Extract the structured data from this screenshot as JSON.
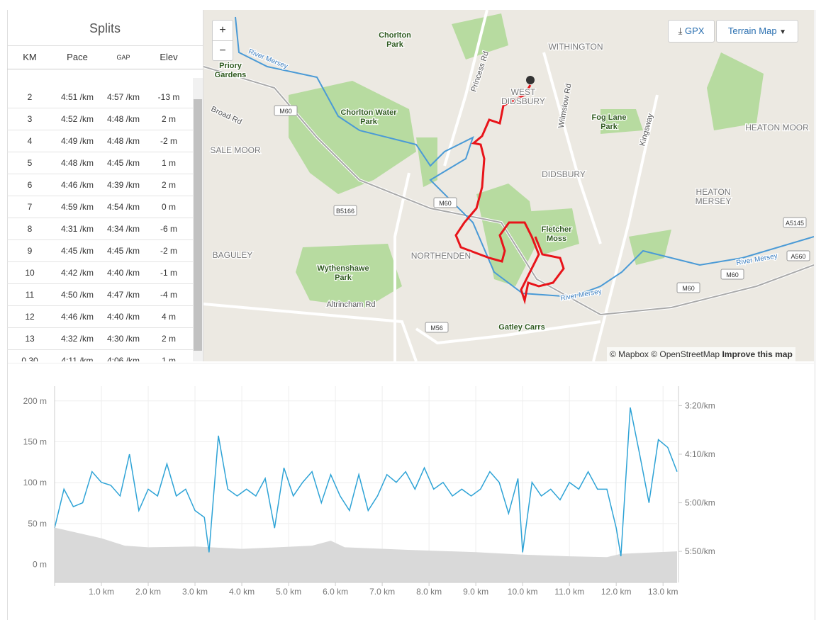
{
  "splits": {
    "title": "Splits",
    "columns": [
      "KM",
      "Pace",
      "GAP",
      "Elev"
    ],
    "rows": [
      [
        "2",
        "4:51 /km",
        "4:57 /km",
        "-13 m"
      ],
      [
        "3",
        "4:52 /km",
        "4:48 /km",
        "2 m"
      ],
      [
        "4",
        "4:49 /km",
        "4:48 /km",
        "-2 m"
      ],
      [
        "5",
        "4:48 /km",
        "4:45 /km",
        "1 m"
      ],
      [
        "6",
        "4:46 /km",
        "4:39 /km",
        "2 m"
      ],
      [
        "7",
        "4:59 /km",
        "4:54 /km",
        "0 m"
      ],
      [
        "8",
        "4:31 /km",
        "4:34 /km",
        "-6 m"
      ],
      [
        "9",
        "4:45 /km",
        "4:45 /km",
        "-2 m"
      ],
      [
        "10",
        "4:42 /km",
        "4:40 /km",
        "-1 m"
      ],
      [
        "11",
        "4:50 /km",
        "4:47 /km",
        "-4 m"
      ],
      [
        "12",
        "4:46 /km",
        "4:40 /km",
        "4 m"
      ],
      [
        "13",
        "4:32 /km",
        "4:30 /km",
        "2 m"
      ],
      [
        "0.30",
        "4:11 /km",
        "4:06 /km",
        "1 m"
      ]
    ]
  },
  "map": {
    "zoom_in": "+",
    "zoom_out": "−",
    "gpx": "GPX",
    "layer": "Terrain Map",
    "attribution": "© Mapbox © OpenStreetMap",
    "improve": "Improve this map",
    "labels": [
      "Chorlton Park",
      "WITHINGTON",
      "Priory Gardens",
      "River Mersey",
      "Princess Rd",
      "WEST DIDSBURY",
      "Wilmslow Rd",
      "Broad Rd",
      "Chorlton Water Park",
      "Fog Lane Park",
      "Kingsway",
      "HEATON MOOR",
      "SALE MOOR",
      "M60",
      "DIDSBURY",
      "HEATON MERSEY",
      "M60",
      "B5166",
      "Fletcher Moss",
      "A5145",
      "BAGULEY",
      "NORTHENDEN",
      "Wythenshawe Park",
      "River Mersey",
      "A560",
      "M60",
      "M60",
      "River Mersey",
      "Altrincham Rd",
      "M56",
      "Gatley Carrs"
    ]
  },
  "chart_data": {
    "type": "line",
    "xlim": [
      0,
      13.3
    ],
    "xticks": [
      {
        "value": 1,
        "label": "1.0 km"
      },
      {
        "value": 2,
        "label": "2.0 km"
      },
      {
        "value": 3,
        "label": "3.0 km"
      },
      {
        "value": 4,
        "label": "4.0 km"
      },
      {
        "value": 5,
        "label": "5.0 km"
      },
      {
        "value": 6,
        "label": "6.0 km"
      },
      {
        "value": 7,
        "label": "7.0 km"
      },
      {
        "value": 8,
        "label": "8.0 km"
      },
      {
        "value": 9,
        "label": "9.0 km"
      },
      {
        "value": 10,
        "label": "10.0 km"
      },
      {
        "value": 11,
        "label": "11.0 km"
      },
      {
        "value": 12,
        "label": "12.0 km"
      },
      {
        "value": 13,
        "label": "13.0 km"
      }
    ],
    "ylim": [
      -22,
      218
    ],
    "yticks": [
      {
        "value": 0,
        "label": "0 m"
      },
      {
        "value": 50,
        "label": "50 m"
      },
      {
        "value": 100,
        "label": "100 m"
      },
      {
        "value": 150,
        "label": "150 m"
      },
      {
        "value": 200,
        "label": "200 m"
      }
    ],
    "y2lim": [
      382,
      180
    ],
    "y2ticks": [
      {
        "value": 200,
        "label": "3:20/km"
      },
      {
        "value": 250,
        "label": "4:10/km"
      },
      {
        "value": 300,
        "label": "5:00/km"
      },
      {
        "value": 350,
        "label": "5:50/km"
      }
    ],
    "grid": true,
    "series": [
      {
        "type": "area",
        "color": "#d9d9d9",
        "x": [
          0,
          1.0,
          1.5,
          2.0,
          3.0,
          4.0,
          5.5,
          5.9,
          6.2,
          7.5,
          9.0,
          10.0,
          11.0,
          11.8,
          12.1,
          13.3
        ],
        "values": [
          45,
          32,
          23,
          21,
          22,
          19,
          23,
          29,
          21,
          18,
          15,
          12,
          10,
          9,
          13,
          16
        ]
      },
      {
        "type": "line",
        "color": "#2ea3d6",
        "axis": "y2",
        "x": [
          0,
          0.2,
          0.4,
          0.6,
          0.8,
          1.0,
          1.2,
          1.4,
          1.6,
          1.8,
          2.0,
          2.2,
          2.4,
          2.6,
          2.8,
          3.0,
          3.2,
          3.3,
          3.5,
          3.7,
          3.9,
          4.1,
          4.3,
          4.5,
          4.7,
          4.9,
          5.1,
          5.3,
          5.5,
          5.7,
          5.9,
          6.1,
          6.3,
          6.5,
          6.7,
          6.9,
          7.1,
          7.3,
          7.5,
          7.7,
          7.9,
          8.1,
          8.3,
          8.5,
          8.7,
          8.9,
          9.1,
          9.3,
          9.5,
          9.7,
          9.9,
          10.0,
          10.2,
          10.4,
          10.6,
          10.8,
          11.0,
          11.2,
          11.4,
          11.6,
          11.8,
          12.0,
          12.1,
          12.3,
          12.5,
          12.7,
          12.9,
          13.1,
          13.3
        ],
        "values": [
          326,
          286,
          304,
          300,
          268,
          279,
          282,
          293,
          250,
          308,
          286,
          293,
          260,
          293,
          286,
          308,
          315,
          351,
          231,
          286,
          293,
          286,
          293,
          275,
          326,
          264,
          293,
          279,
          268,
          300,
          271,
          293,
          308,
          271,
          308,
          293,
          271,
          279,
          268,
          286,
          264,
          286,
          279,
          293,
          286,
          293,
          286,
          268,
          279,
          311,
          275,
          351,
          279,
          293,
          286,
          297,
          279,
          286,
          268,
          286,
          286,
          326,
          355,
          202,
          250,
          300,
          235,
          243,
          268
        ]
      }
    ]
  }
}
